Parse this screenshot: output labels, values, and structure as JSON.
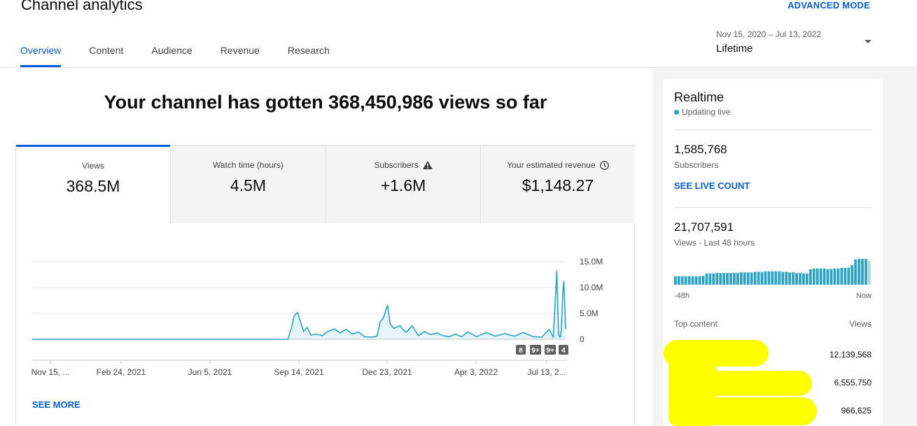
{
  "header": {
    "title": "Channel analytics",
    "advanced_mode": "ADVANCED MODE"
  },
  "tabs": [
    {
      "label": "Overview",
      "active": true
    },
    {
      "label": "Content",
      "active": false
    },
    {
      "label": "Audience",
      "active": false
    },
    {
      "label": "Revenue",
      "active": false
    },
    {
      "label": "Research",
      "active": false
    }
  ],
  "date_picker": {
    "range": "Nov 15, 2020 – Jul 13, 2022",
    "label": "Lifetime"
  },
  "headline": "Your channel has gotten 368,450,986 views so far",
  "metrics": [
    {
      "label": "Views",
      "value": "368.5M",
      "icon": ""
    },
    {
      "label": "Watch time (hours)",
      "value": "4.5M",
      "icon": ""
    },
    {
      "label": "Subscribers",
      "value": "+1.6M",
      "icon": "warning-icon"
    },
    {
      "label": "Your estimated revenue",
      "value": "$1,148.27",
      "icon": "clock-icon"
    }
  ],
  "chart_data": {
    "type": "area",
    "x_tick_labels": [
      "Nov 15, ...",
      "Feb 24, 2021",
      "Jun 5, 2021",
      "Sep 14, 2021",
      "Dec 23, 2021",
      "Apr 3, 2022",
      "Jul 13, 2..."
    ],
    "y_tick_labels": [
      "15.0M",
      "10.0M",
      "5.0M",
      "0"
    ],
    "ylim": [
      0,
      15000000
    ],
    "grid": true,
    "x": [
      "Nov 15, 2020",
      "Sep 1, 2021",
      "Sep 5, 2021",
      "Sep 8, 2021",
      "Sep 12, 2021",
      "Sep 16, 2021",
      "Sep 19, 2021",
      "Sep 23, 2021",
      "Sep 27, 2021",
      "Oct 3, 2021",
      "Oct 10, 2021",
      "Oct 17, 2021",
      "Oct 24, 2021",
      "Oct 30, 2021",
      "Nov 6, 2021",
      "Nov 13, 2021",
      "Nov 20, 2021",
      "Nov 27, 2021",
      "Dec 4, 2021",
      "Dec 11, 2021",
      "Dec 15, 2021",
      "Dec 18, 2021",
      "Dec 23, 2021",
      "Dec 26, 2021",
      "Dec 30, 2021",
      "Jan 6, 2022",
      "Jan 13, 2022",
      "Jan 20, 2022",
      "Jan 27, 2022",
      "Feb 3, 2022",
      "Feb 10, 2022",
      "Feb 17, 2022",
      "Feb 24, 2022",
      "Mar 3, 2022",
      "Mar 10, 2022",
      "Mar 17, 2022",
      "Mar 24, 2022",
      "Apr 3, 2022",
      "Apr 14, 2022",
      "Apr 24, 2022",
      "May 5, 2022",
      "May 16, 2022",
      "May 26, 2022",
      "Jun 6, 2022",
      "Jun 16, 2022",
      "Jun 24, 2022",
      "Jun 29, 2022",
      "Jul 3, 2022",
      "Jul 5, 2022",
      "Jul 6, 2022",
      "Jul 7, 2022",
      "Jul 8, 2022",
      "Jul 10, 2022",
      "Jul 11, 2022",
      "Jul 13, 2022"
    ],
    "y": [
      0,
      0,
      2200000,
      4500000,
      5200000,
      3000000,
      1500000,
      2300000,
      800000,
      1000000,
      700000,
      1600000,
      2000000,
      1200000,
      1900000,
      1000000,
      1400000,
      500000,
      400000,
      600000,
      3500000,
      4000000,
      6600000,
      3000000,
      2100000,
      2600000,
      1300000,
      2600000,
      700000,
      1500000,
      900000,
      1200000,
      700000,
      500000,
      1000000,
      500000,
      1400000,
      500000,
      1300000,
      600000,
      1100000,
      600000,
      1300000,
      500000,
      400000,
      1900000,
      400000,
      13200000,
      900000,
      500000,
      400000,
      1800000,
      9500000,
      11200000,
      2000000
    ],
    "annotations": [
      "8",
      "9+",
      "9+",
      "4"
    ]
  },
  "see_more": "SEE MORE",
  "realtime": {
    "title": "Realtime",
    "status": "Updating live",
    "subscribers_value": "1,585,768",
    "subscribers_label": "Subscribers",
    "live_count_link": "SEE LIVE COUNT",
    "views_value": "21,707,591",
    "views_label": "Views · Last 48 hours",
    "hourly_views_relative": [
      0.3,
      0.3,
      0.3,
      0.3,
      0.3,
      0.3,
      0.3,
      0.3,
      0.32,
      0.4,
      0.4,
      0.4,
      0.42,
      0.42,
      0.42,
      0.42,
      0.42,
      0.42,
      0.42,
      0.44,
      0.44,
      0.44,
      0.44,
      0.46,
      0.46,
      0.46,
      0.48,
      0.48,
      0.48,
      0.48,
      0.48,
      0.46,
      0.46,
      0.44,
      0.44,
      0.42,
      0.42,
      0.4,
      0.4,
      0.55,
      0.58,
      0.58,
      0.58,
      0.58,
      0.56,
      0.56,
      0.58,
      0.58,
      0.6,
      0.6,
      0.6,
      0.7,
      0.9,
      0.92,
      0.92,
      0.92,
      0.85
    ],
    "axis_left": "-48h",
    "axis_right": "Now",
    "top_content_label": "Top content",
    "top_views_label": "Views",
    "top_content": [
      {
        "views": "12,139,568"
      },
      {
        "views": "6,555,750"
      },
      {
        "views": "966,625"
      }
    ],
    "bar_color": "#2ba3c6"
  }
}
